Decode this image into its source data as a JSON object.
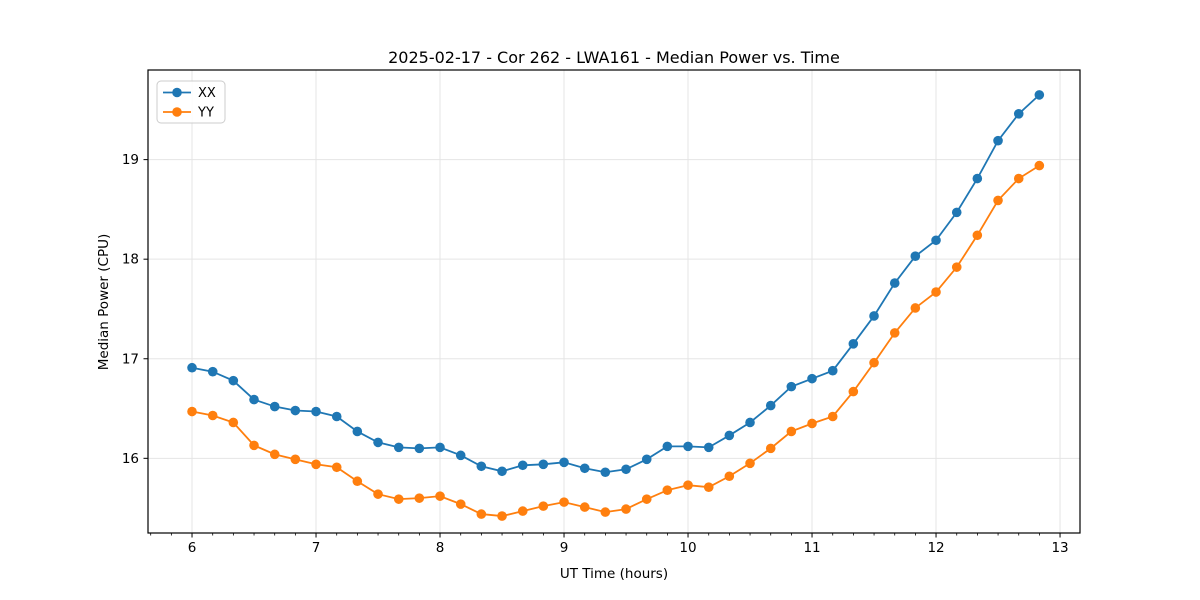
{
  "figure": {
    "background": "#ffffff",
    "text_color": "#000000",
    "grid_color": "#e5e5e5",
    "spine_color": "#000000"
  },
  "chart_data": {
    "type": "line",
    "title": "2025-02-17 - Cor 262 - LWA161 - Median Power vs. Time",
    "xlabel": "UT Time (hours)",
    "ylabel": "Median Power (CPU)",
    "xlim": [
      5.645,
      13.161
    ],
    "ylim": [
      15.25,
      19.9
    ],
    "x_ticks": [
      6,
      7,
      8,
      9,
      10,
      11,
      12,
      13
    ],
    "y_ticks": [
      16,
      17,
      18,
      19
    ],
    "x_minor_step": 0.16667,
    "grid": true,
    "legend_position": "upper-left",
    "marker": "circle",
    "x": [
      6.0,
      6.167,
      6.333,
      6.5,
      6.667,
      6.833,
      7.0,
      7.167,
      7.333,
      7.5,
      7.667,
      7.833,
      8.0,
      8.167,
      8.333,
      8.5,
      8.667,
      8.833,
      9.0,
      9.167,
      9.333,
      9.5,
      9.667,
      9.833,
      10.0,
      10.167,
      10.333,
      10.5,
      10.667,
      10.833,
      11.0,
      11.167,
      11.333,
      11.5,
      11.667,
      11.833,
      12.0,
      12.167,
      12.333,
      12.5,
      12.667,
      12.833
    ],
    "series": [
      {
        "name": "XX",
        "color": "#1f77b4",
        "values": [
          16.91,
          16.87,
          16.78,
          16.59,
          16.52,
          16.48,
          16.47,
          16.42,
          16.27,
          16.16,
          16.11,
          16.1,
          16.11,
          16.03,
          15.92,
          15.87,
          15.93,
          15.94,
          15.96,
          15.9,
          15.86,
          15.89,
          15.99,
          16.12,
          16.12,
          16.11,
          16.23,
          16.36,
          16.53,
          16.72,
          16.8,
          16.88,
          17.15,
          17.43,
          17.76,
          18.03,
          18.19,
          18.47,
          18.81,
          19.19,
          19.46,
          19.65
        ]
      },
      {
        "name": "YY",
        "color": "#ff7f0e",
        "values": [
          16.47,
          16.43,
          16.36,
          16.13,
          16.04,
          15.99,
          15.94,
          15.91,
          15.77,
          15.64,
          15.59,
          15.6,
          15.62,
          15.54,
          15.44,
          15.42,
          15.47,
          15.52,
          15.56,
          15.51,
          15.46,
          15.49,
          15.59,
          15.68,
          15.73,
          15.71,
          15.82,
          15.95,
          16.1,
          16.27,
          16.35,
          16.42,
          16.67,
          16.96,
          17.26,
          17.51,
          17.67,
          17.92,
          18.24,
          18.59,
          18.81,
          18.94
        ]
      }
    ]
  }
}
